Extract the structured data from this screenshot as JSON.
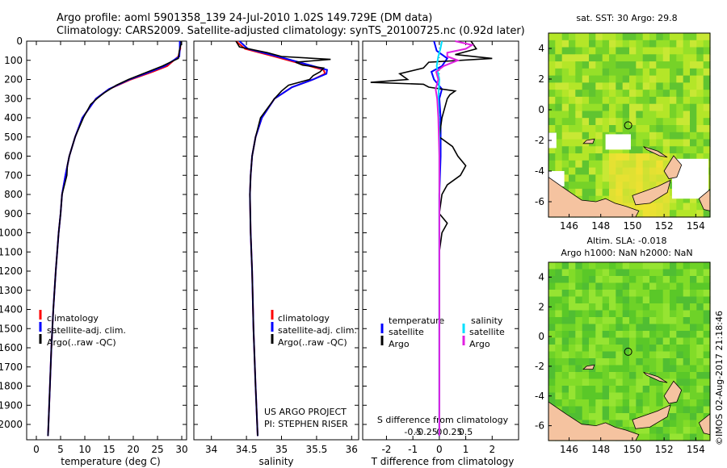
{
  "title": {
    "line1": "Argo profile: aoml 5901358_139 24-Jul-2010 1.02S 149.729E (DM data)",
    "line2": "Climatology: CARS2009. Satellite-adjusted climatology: synTS_20100725.nc (0.92d later)"
  },
  "colors": {
    "climatology": "#ff0000",
    "satellite": "#0000ff",
    "argo": "#000000",
    "sal_sat": "#00e0ff",
    "sal_argo": "#e020e0",
    "land": "#f5c3a0"
  },
  "chart_data": [
    {
      "type": "line",
      "id": "temperature",
      "xlabel": "temperature (deg C)",
      "xlim": [
        -2,
        31
      ],
      "ylim": [
        2080,
        0
      ],
      "xticks": [
        0,
        5,
        10,
        15,
        20,
        25,
        30
      ],
      "xtick_labels": [
        "0",
        "5",
        "10",
        "15",
        "20",
        "25",
        "30"
      ],
      "yticks": [
        0,
        100,
        200,
        300,
        400,
        500,
        600,
        700,
        800,
        900,
        1000,
        1100,
        1200,
        1300,
        1400,
        1500,
        1600,
        1700,
        1800,
        1900,
        2000
      ],
      "ytick_labels": [
        "0",
        "100",
        "200",
        "300",
        "400",
        "500",
        "600",
        "700",
        "800",
        "900",
        "1000",
        "1100",
        "1200",
        "1300",
        "1400",
        "1500",
        "1600",
        "1700",
        "1800",
        "1900",
        "2000"
      ],
      "legend": [
        "climatology",
        "satellite-adj. clim.",
        "Argo(..raw -QC)"
      ],
      "series": [
        {
          "name": "climatology",
          "depth": [
            0,
            40,
            80,
            130,
            160,
            200,
            250,
            300,
            400,
            500,
            600,
            700,
            800,
            900,
            1000,
            1200,
            1400,
            1600,
            1800,
            2000,
            2060
          ],
          "values": [
            29.7,
            29.7,
            29.3,
            27.0,
            24.0,
            19.5,
            15.0,
            12.3,
            9.5,
            8.0,
            6.8,
            6.0,
            5.3,
            5.0,
            4.6,
            4.0,
            3.5,
            3.1,
            2.8,
            2.5,
            2.4
          ]
        },
        {
          "name": "satellite-adj. clim.",
          "depth": [
            0,
            40,
            80,
            130,
            160,
            200,
            250,
            300,
            400,
            500,
            600,
            700,
            800,
            900,
            1000,
            1200,
            1400,
            1600,
            1800,
            2000,
            2060
          ],
          "values": [
            29.6,
            29.6,
            29.5,
            26.5,
            23.5,
            19.2,
            15.0,
            12.3,
            9.5,
            8.0,
            6.8,
            6.0,
            5.3,
            5.0,
            4.6,
            4.0,
            3.5,
            3.1,
            2.8,
            2.5,
            2.4
          ]
        },
        {
          "name": "Argo(..raw -QC)",
          "depth": [
            0,
            10,
            50,
            90,
            130,
            170,
            200,
            230,
            270,
            300,
            330,
            400,
            500,
            600,
            650,
            700,
            800,
            900,
            1000,
            1200,
            1400,
            1600,
            1800,
            2000,
            2060
          ],
          "values": [
            29.8,
            29.9,
            29.5,
            29.3,
            26.0,
            22.0,
            19.0,
            16.5,
            14.0,
            12.5,
            11.2,
            9.7,
            8.0,
            6.8,
            6.4,
            6.3,
            5.3,
            5.0,
            4.6,
            4.0,
            3.5,
            3.1,
            2.8,
            2.5,
            2.4
          ]
        }
      ]
    },
    {
      "type": "line",
      "id": "salinity",
      "xlabel": "salinity",
      "xlim": [
        33.75,
        36.1
      ],
      "ylim": [
        2080,
        0
      ],
      "xticks": [
        34,
        34.5,
        35,
        35.5,
        36
      ],
      "xtick_labels": [
        "34",
        "34.5",
        "35",
        "35.5",
        "36"
      ],
      "legend": [
        "climatology",
        "satellite-adj. clim.",
        "Argo(..raw -QC)"
      ],
      "annotation": [
        "US ARGO PROJECT",
        "PI: STEPHEN RISER"
      ],
      "series": [
        {
          "name": "climatology",
          "depth": [
            0,
            40,
            80,
            120,
            150,
            170,
            200,
            240,
            300,
            400,
            500,
            600,
            700,
            800,
            1000,
            1200,
            1500,
            1800,
            2060
          ],
          "values": [
            34.35,
            34.48,
            34.9,
            35.3,
            35.6,
            35.62,
            35.45,
            35.15,
            34.9,
            34.72,
            34.63,
            34.58,
            34.56,
            34.55,
            34.56,
            34.58,
            34.6,
            34.63,
            34.66
          ]
        },
        {
          "name": "satellite-adj. clim.",
          "depth": [
            0,
            40,
            80,
            120,
            150,
            170,
            200,
            240,
            300,
            400,
            500,
            600,
            700,
            800,
            1000,
            1200,
            1500,
            1800,
            2060
          ],
          "values": [
            34.4,
            34.52,
            34.95,
            35.35,
            35.65,
            35.64,
            35.45,
            35.15,
            34.9,
            34.72,
            34.63,
            34.58,
            34.56,
            34.55,
            34.56,
            34.58,
            34.6,
            34.63,
            34.66
          ]
        },
        {
          "name": "Argo(..raw -QC)",
          "depth": [
            0,
            30,
            60,
            80,
            95,
            110,
            125,
            140,
            160,
            180,
            200,
            230,
            260,
            300,
            400,
            500,
            600,
            700,
            800,
            1000,
            1200,
            1500,
            1800,
            2060
          ],
          "values": [
            34.35,
            34.4,
            34.8,
            35.0,
            35.7,
            35.2,
            35.3,
            35.6,
            35.55,
            35.45,
            35.4,
            35.1,
            35.0,
            34.9,
            34.7,
            34.63,
            34.58,
            34.56,
            34.55,
            34.56,
            34.58,
            34.6,
            34.63,
            34.66
          ]
        }
      ]
    },
    {
      "type": "line",
      "id": "difference",
      "xlabel": "T difference from climatology",
      "xlabel2": "S difference from climatology",
      "xlim": [
        -2.9,
        3.0
      ],
      "ylim": [
        2080,
        0
      ],
      "xticks": [
        -2,
        -1,
        0,
        1,
        2
      ],
      "xtick_labels": [
        "-2",
        "-1",
        "0",
        "1",
        "2"
      ],
      "sticks": [
        -0.5,
        -0.25,
        0,
        0.25,
        0.5
      ],
      "stick_labels": [
        "-0.5",
        "-0.25",
        "0",
        "0.25",
        "0.5"
      ],
      "legend_titles": [
        "temperature",
        "salinity"
      ],
      "legend": [
        "satellite",
        "Argo",
        "satellite",
        "Argo"
      ],
      "series": [
        {
          "name": "T satellite",
          "depth": [
            0,
            50,
            90,
            130,
            160,
            200,
            250,
            300,
            400,
            600,
            800,
            1000,
            1500,
            2060
          ],
          "values": [
            -0.2,
            -0.1,
            0.3,
            0.1,
            -0.3,
            -0.2,
            0.1,
            0.0,
            0.05,
            0.05,
            0.0,
            0.0,
            0.0,
            0.0
          ]
        },
        {
          "name": "T Argo",
          "depth": [
            0,
            40,
            70,
            90,
            110,
            140,
            170,
            200,
            215,
            225,
            240,
            260,
            280,
            300,
            350,
            400,
            500,
            550,
            600,
            650,
            700,
            750,
            800,
            900,
            950,
            1000,
            1100,
            1500,
            2060
          ],
          "values": [
            1.2,
            1.4,
            0.6,
            2.0,
            -0.4,
            -0.6,
            -1.5,
            -1.2,
            -2.6,
            -0.6,
            -0.4,
            0.6,
            0.4,
            0.3,
            0.2,
            0.1,
            0.0,
            0.5,
            0.7,
            1.0,
            0.8,
            0.3,
            0.1,
            0.0,
            0.3,
            0.1,
            0.0,
            0.0,
            0.0
          ]
        },
        {
          "name": "S satellite",
          "depth": [
            0,
            40,
            80,
            130,
            200,
            300,
            500,
            800,
            1200,
            1600,
            2060
          ],
          "values": [
            0.05,
            0.02,
            -0.02,
            -0.05,
            0.0,
            -0.02,
            0.0,
            0.0,
            0.0,
            0.0,
            0.0
          ]
        },
        {
          "name": "S Argo",
          "depth": [
            0,
            20,
            40,
            60,
            80,
            100,
            130,
            160,
            200,
            250,
            300,
            400,
            600,
            1000,
            1500,
            2060
          ],
          "values": [
            0.3,
            0.62,
            0.5,
            0.15,
            0.15,
            0.35,
            0.08,
            -0.06,
            -0.02,
            -0.07,
            -0.04,
            -0.02,
            0.0,
            0.0,
            0.0,
            0.0
          ]
        }
      ]
    },
    {
      "type": "heatmap",
      "id": "sst",
      "title": "sat. SST: 30 Argo: 29.8",
      "xlim": [
        144.7,
        154.9
      ],
      "ylim": [
        -7,
        5
      ],
      "xticks": [
        146,
        148,
        150,
        152,
        154
      ],
      "xtick_labels": [
        "146",
        "148",
        "150",
        "152",
        "154"
      ],
      "yticks": [
        -6,
        -4,
        -2,
        0,
        2,
        4
      ],
      "ytick_labels": [
        "-6",
        "-4",
        "-2",
        "0",
        "2",
        "4"
      ],
      "marker": {
        "lon": 149.729,
        "lat": -1.02
      }
    },
    {
      "type": "heatmap",
      "id": "sla",
      "title": "Altim. SLA: -0.018",
      "subtitle": "Argo h1000: NaN h2000: NaN",
      "xlim": [
        144.7,
        154.9
      ],
      "ylim": [
        -7,
        5
      ],
      "xticks": [
        146,
        148,
        150,
        152,
        154
      ],
      "xtick_labels": [
        "146",
        "148",
        "150",
        "152",
        "154"
      ],
      "yticks": [
        -6,
        -4,
        -2,
        0,
        2,
        4
      ],
      "ytick_labels": [
        "-6",
        "-4",
        "-2",
        "0",
        "2",
        "4"
      ],
      "marker": {
        "lon": 149.729,
        "lat": -1.02
      }
    }
  ],
  "footer": {
    "credit": "©IMOS 02-Aug-2017 21:18:46"
  }
}
